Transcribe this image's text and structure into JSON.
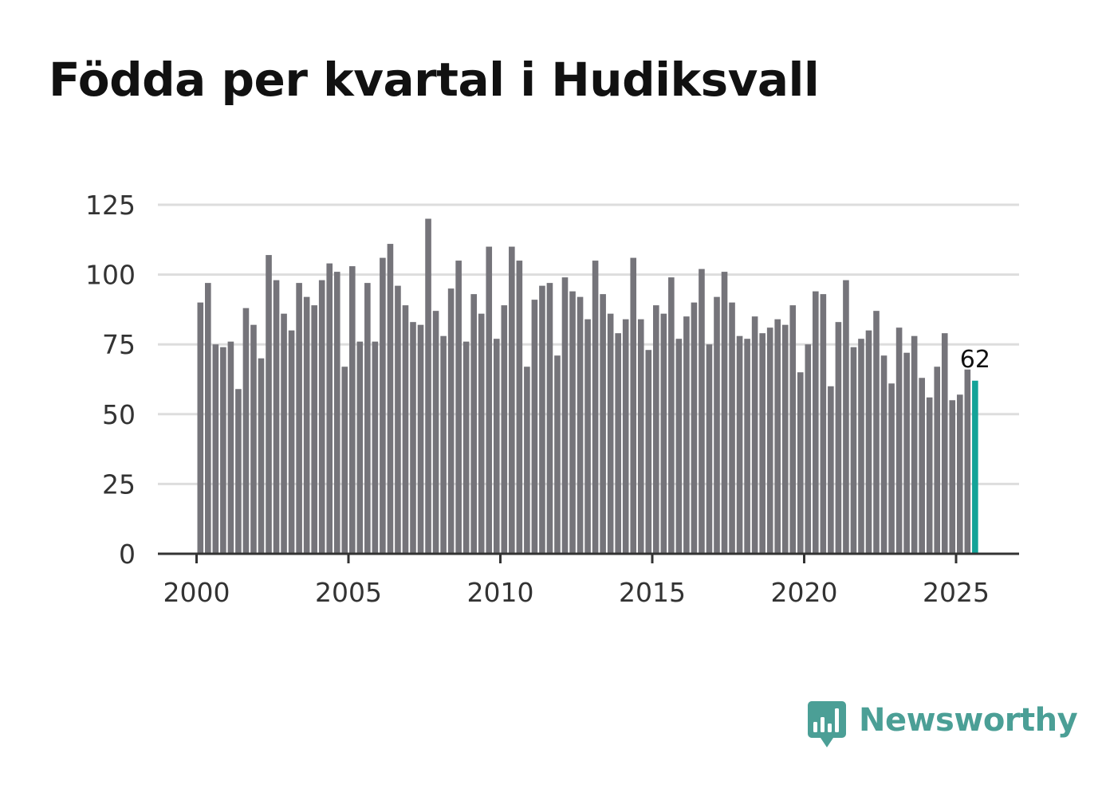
{
  "title": "Födda per kvartal i Hudiksvall",
  "brand": {
    "name": "Newsworthy",
    "color": "#4b9f96",
    "icon": "bar-chart-speech-bubble-icon"
  },
  "colors": {
    "bar": "#75747a",
    "highlight": "#13a398",
    "grid": "#dddddd",
    "axis": "#333333"
  },
  "chart_data": {
    "type": "bar",
    "title": "Födda per kvartal i Hudiksvall",
    "xlabel": "",
    "ylabel": "",
    "ylim": [
      0,
      125
    ],
    "yticks": [
      0,
      25,
      50,
      75,
      100,
      125
    ],
    "xticks": [
      2000,
      2005,
      2010,
      2015,
      2020,
      2025
    ],
    "xlim": [
      2000,
      2027.2
    ],
    "grid": true,
    "legend": "none",
    "start_year": 2000,
    "quarters_per_year": 4,
    "values": [
      90,
      97,
      75,
      74,
      76,
      59,
      88,
      82,
      70,
      107,
      98,
      86,
      80,
      97,
      92,
      89,
      98,
      104,
      101,
      67,
      103,
      76,
      97,
      76,
      106,
      111,
      96,
      89,
      83,
      82,
      120,
      87,
      78,
      95,
      105,
      76,
      93,
      86,
      110,
      77,
      89,
      110,
      105,
      67,
      91,
      96,
      97,
      71,
      99,
      94,
      92,
      84,
      105,
      93,
      86,
      79,
      84,
      106,
      84,
      73,
      89,
      86,
      99,
      77,
      85,
      90,
      102,
      75,
      92,
      101,
      90,
      78,
      77,
      85,
      79,
      81,
      84,
      82,
      89,
      65,
      75,
      94,
      93,
      60,
      83,
      98,
      74,
      77,
      80,
      87,
      71,
      61,
      81,
      72,
      78,
      63,
      56,
      67,
      79,
      55,
      57,
      66,
      62
    ],
    "highlight_index": 102,
    "annotations": [
      {
        "index": 102,
        "text": "62"
      }
    ]
  }
}
